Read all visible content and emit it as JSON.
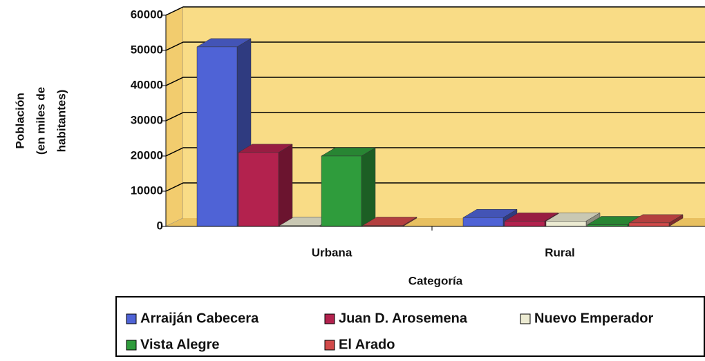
{
  "chart_data": {
    "type": "bar3d",
    "y_label": [
      "Población",
      "(en miles de",
      "habitantes)"
    ],
    "x_label": "Categoría",
    "categories": [
      "Urbana",
      "Rural"
    ],
    "series": [
      {
        "name": "Arraiján Cabecera",
        "color": "#4f63d6",
        "values": [
          51000,
          2500
        ]
      },
      {
        "name": "Juan D. Arosemena",
        "color": "#b3224e",
        "values": [
          21000,
          1500
        ]
      },
      {
        "name": "Nuevo Emperador",
        "color": "#ecebd2",
        "values": [
          300,
          1500
        ]
      },
      {
        "name": "Vista Alegre",
        "color": "#2f9c3c",
        "values": [
          20000,
          500
        ]
      },
      {
        "name": "El Arado",
        "color": "#d24a4a",
        "values": [
          300,
          1000
        ]
      }
    ],
    "ylim": [
      0,
      60000
    ],
    "yticks": [
      0,
      10000,
      20000,
      30000,
      40000,
      50000,
      60000
    ],
    "grid": true
  }
}
